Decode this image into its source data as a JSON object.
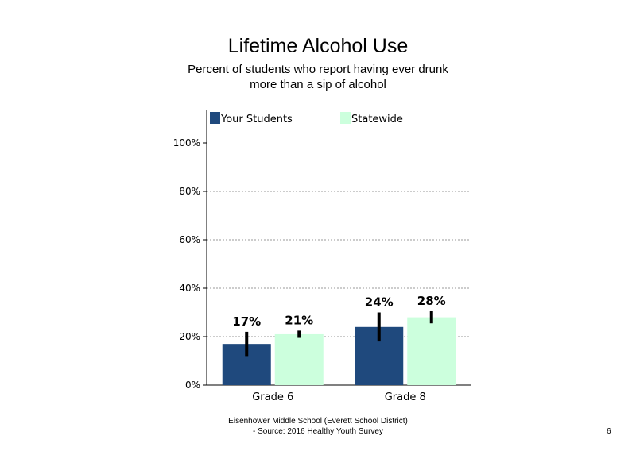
{
  "chart_data": {
    "type": "bar",
    "title": "Lifetime Alcohol Use",
    "subtitle_lines": [
      "Percent of students who report having ever drunk",
      "more than a sip of alcohol"
    ],
    "categories": [
      "Grade 6",
      "Grade 8"
    ],
    "series": [
      {
        "name": "Your Students",
        "color": "#1F497D",
        "values": [
          17,
          24
        ],
        "labels": [
          "17%",
          "24%"
        ],
        "error_low": [
          12,
          18
        ],
        "error_high": [
          22,
          30
        ]
      },
      {
        "name": "Statewide",
        "color": "#CCFFDD",
        "values": [
          21,
          28
        ],
        "labels": [
          "21%",
          "28%"
        ],
        "error_low": [
          19.5,
          25.5
        ],
        "error_high": [
          22.5,
          30.5
        ]
      }
    ],
    "yticks": [
      "0%",
      "20%",
      "40%",
      "60%",
      "80%",
      "100%"
    ],
    "ylim": [
      0,
      100
    ],
    "grid": "dotted horizontal",
    "legend_position": "top"
  },
  "footer": {
    "line1": "Eisenhower Middle School (Everett School District)",
    "line2": "- Source: 2016 Healthy  Youth Survey"
  },
  "page_number": "6"
}
